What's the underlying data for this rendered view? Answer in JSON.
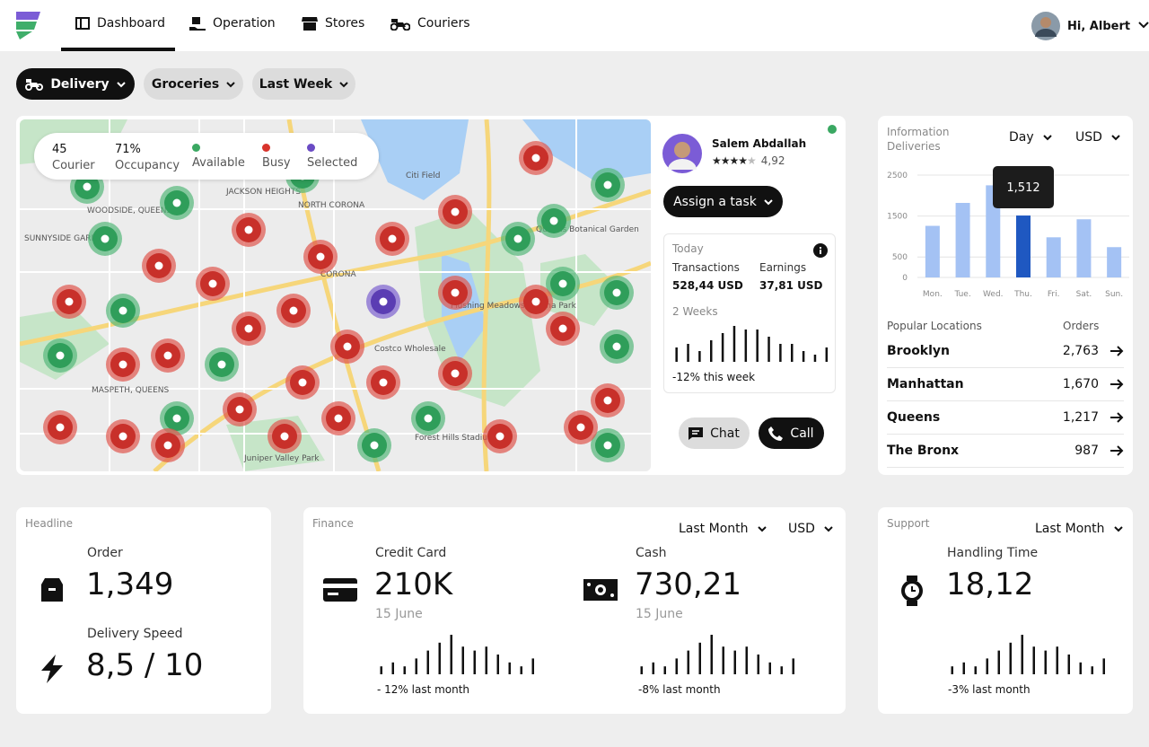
{
  "nav": {
    "items": [
      "Dashboard",
      "Operation",
      "Stores",
      "Couriers"
    ],
    "user": "Hi, Albert"
  },
  "filters": [
    "Delivery",
    "Groceries",
    "Last Week"
  ],
  "map": {
    "stats": [
      {
        "value": "45",
        "label": "Courier"
      },
      {
        "value": "71%",
        "label": "Occupancy"
      }
    ],
    "legend": [
      "Available",
      "Busy",
      "Selected"
    ],
    "places": [
      "JACKSON HEIGHTS",
      "NORTH CORONA",
      "CORONA",
      "WOODSIDE, QUEENS",
      "SUNNYSIDE GARDENS",
      "MASPETH, QUEENS",
      "Citi Field",
      "Forest Hills Stadium",
      "Juniper Valley Park",
      "Flushing Meadows Corona Park",
      "Costco Wholesale",
      "Queens Botanical Garden"
    ]
  },
  "courier": {
    "name": "Salem Abdallah",
    "rating": "4,92",
    "assign": "Assign a task",
    "today": "Today",
    "transactions_label": "Transactions",
    "transactions": "528,44 USD",
    "earnings_label": "Earnings",
    "earnings": "37,81 USD",
    "period": "2 Weeks",
    "trend": [
      4,
      5,
      3,
      6,
      8,
      10,
      9,
      9,
      7,
      5,
      5,
      3,
      2,
      4
    ],
    "change": "-12% this week",
    "chat": "Chat",
    "call": "Call"
  },
  "chart_data": {
    "type": "bar",
    "subtitle": "Information",
    "title": "Deliveries",
    "filters": [
      "Day",
      "USD"
    ],
    "categories": [
      "Mon.",
      "Tue.",
      "Wed.",
      "Thu.",
      "Fri.",
      "Sat.",
      "Sun."
    ],
    "values": [
      1260,
      1820,
      2250,
      1512,
      980,
      1420,
      740
    ],
    "value_labels": [
      null,
      null,
      null,
      "1,512",
      null,
      null,
      null
    ],
    "color": "#a4c2f4",
    "highlight_color": "#1f58c1",
    "ylim": [
      0,
      2500
    ],
    "yticks": [
      0,
      500,
      1500,
      2500
    ],
    "grid": true
  },
  "locations": {
    "header": [
      "Popular Locations",
      "Orders"
    ],
    "rows": [
      [
        "Brooklyn",
        "2,763"
      ],
      [
        "Manhattan",
        "1,670"
      ],
      [
        "Queens",
        "1,217"
      ],
      [
        "The Bronx",
        "987"
      ]
    ]
  },
  "headline": {
    "label": "Headline",
    "items": [
      {
        "label": "Order",
        "value": "1,349"
      },
      {
        "label": "Delivery Speed",
        "value": "8,5 / 10"
      }
    ]
  },
  "finance": {
    "label": "Finance",
    "filters": [
      "Last Month",
      "USD"
    ],
    "items": [
      {
        "label": "Credit Card",
        "value": "210K",
        "date": "15 June",
        "trend": [
          2,
          3,
          2,
          4,
          6,
          8,
          10,
          7,
          6,
          7,
          5,
          3,
          2,
          4
        ],
        "change": "- 12% last month"
      },
      {
        "label": "Cash",
        "value": "730,21",
        "date": "15 June",
        "trend": [
          2,
          3,
          2,
          4,
          6,
          8,
          10,
          7,
          6,
          7,
          5,
          3,
          2,
          4
        ],
        "change": "-8% last month"
      }
    ]
  },
  "support": {
    "label": "Support",
    "filter": "Last Month",
    "item": {
      "label": "Handling Time",
      "value": "18,12",
      "trend": [
        2,
        3,
        2,
        4,
        6,
        8,
        10,
        7,
        6,
        7,
        5,
        3,
        2,
        4
      ],
      "change": "-3% last month"
    }
  }
}
